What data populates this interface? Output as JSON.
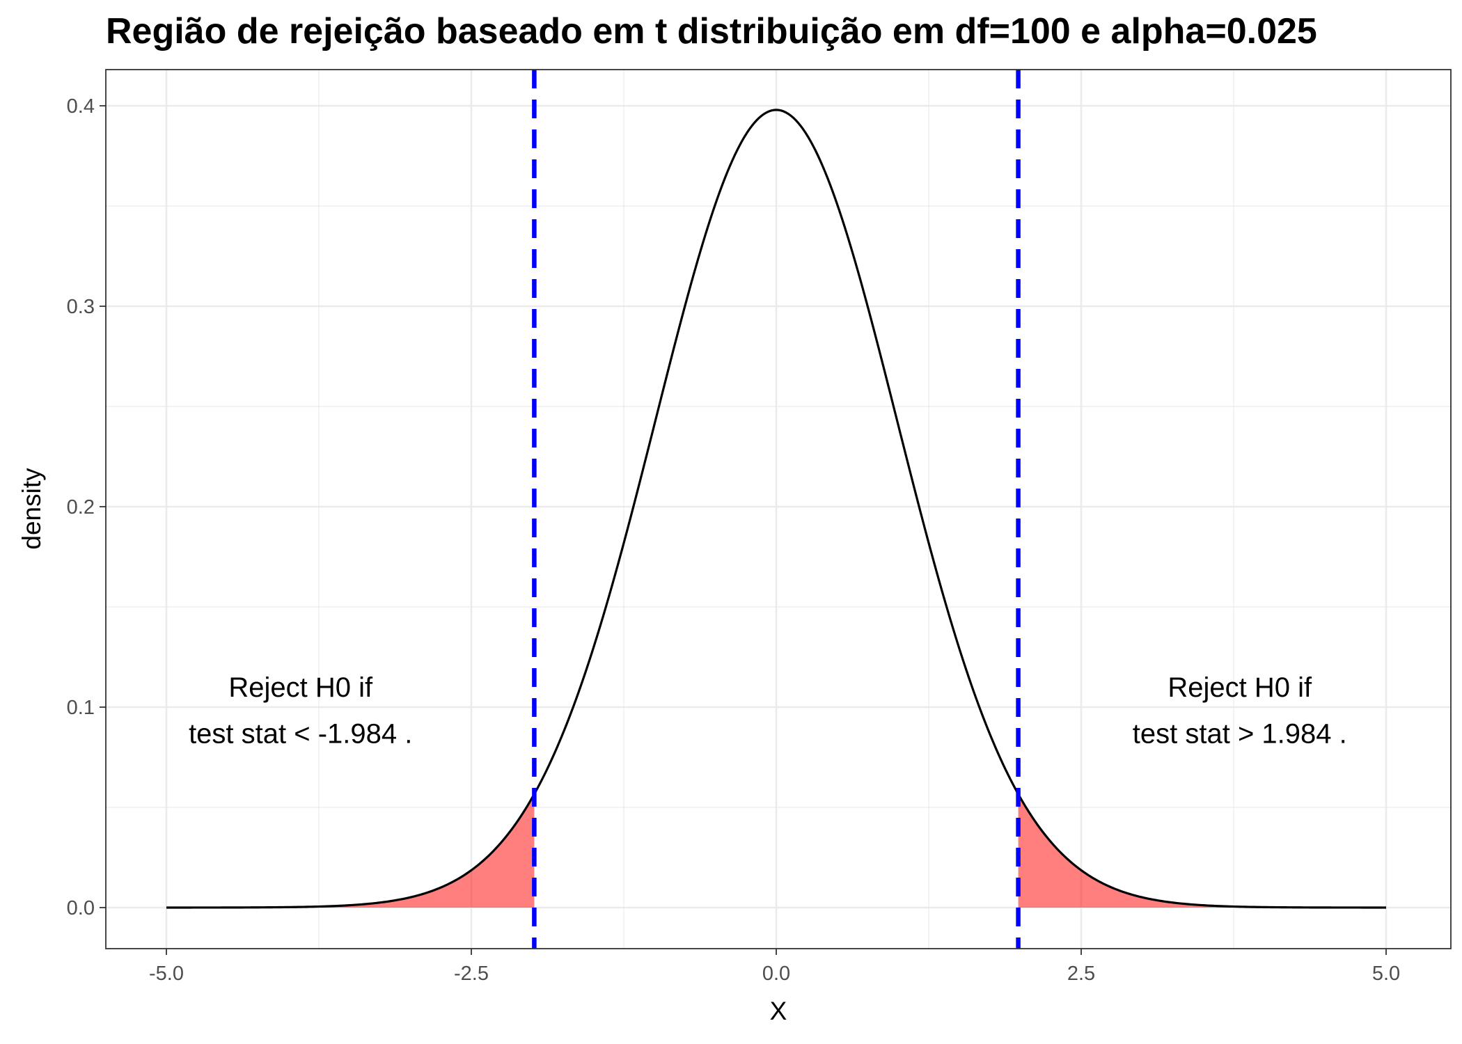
{
  "chart_data": {
    "type": "line",
    "title": "Região de rejeição baseado em t distribuição em df=100 e alpha=0.025",
    "xlabel": "X",
    "ylabel": "density",
    "distribution": "t",
    "df": 100,
    "alpha": 0.025,
    "xlim": [
      -5.0,
      5.0
    ],
    "ylim": [
      0.0,
      0.4
    ],
    "x_ticks": [
      -5.0,
      -2.5,
      0.0,
      2.5,
      5.0
    ],
    "x_tick_labels": [
      "-5.0",
      "-2.5",
      "0.0",
      "2.5",
      "5.0"
    ],
    "y_ticks": [
      0.0,
      0.1,
      0.2,
      0.3,
      0.4
    ],
    "y_tick_labels": [
      "0.0",
      "0.1",
      "0.2",
      "0.3",
      "0.4"
    ],
    "grid": true,
    "critical_values": [
      -1.984,
      1.984
    ],
    "critical_line_color": "#0000ff",
    "curve_color": "#000000",
    "rejection_fill_color": "#ff0000",
    "annotations": [
      {
        "lines": [
          "Reject H0 if",
          "test stat <  -1.984 ."
        ],
        "x": -3.9,
        "y": [
          0.11,
          0.087
        ]
      },
      {
        "lines": [
          "Reject H0 if",
          "test stat >  1.984 ."
        ],
        "x": 3.8,
        "y": [
          0.11,
          0.087
        ]
      }
    ]
  }
}
